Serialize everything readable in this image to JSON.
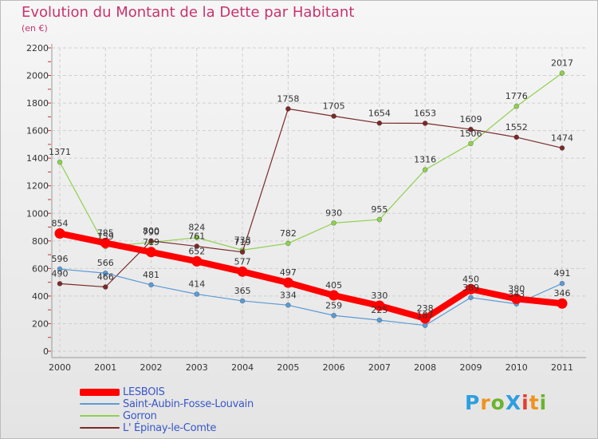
{
  "header": {
    "title": "Evolution du Montant de la Dette par Habitant",
    "subtitle": "(en €)"
  },
  "logo": {
    "text": "ProXiti",
    "letter_colors": [
      "#2e9ee0",
      "#f0921d",
      "#6ab42d",
      "#2e9ee0",
      "#e23d2e",
      "#f0921d",
      "#6ab42d"
    ]
  },
  "chart_data": {
    "type": "line",
    "title": "Evolution du Montant de la Dette par Habitant",
    "subtitle": "(en €)",
    "xlabel": "",
    "ylabel": "",
    "x": [
      "2000",
      "2001",
      "2002",
      "2003",
      "2004",
      "2005",
      "2006",
      "2007",
      "2008",
      "2009",
      "2010",
      "2011"
    ],
    "ylim": [
      0,
      2200
    ],
    "yticks": [
      0,
      200,
      400,
      600,
      800,
      1000,
      1200,
      1400,
      1600,
      1800,
      2000,
      2200
    ],
    "grid": true,
    "legend_position": "bottom-left",
    "series": [
      {
        "name": "LESBOIS",
        "color": "#ff0000",
        "emphasis": "thick",
        "values": [
          854,
          785,
          719,
          652,
          577,
          497,
          405,
          330,
          238,
          450,
          380,
          346
        ],
        "labels": [
          "854",
          "785",
          "719",
          "652",
          "577",
          "497",
          "405",
          "330",
          "238",
          "450",
          "380",
          "346"
        ]
      },
      {
        "name": "Saint-Aubin-Fosse-Louvain",
        "color": "#5b9bd5",
        "values": [
          596,
          566,
          481,
          414,
          365,
          334,
          259,
          225,
          187,
          389,
          343,
          491
        ],
        "labels": [
          "596",
          "566",
          "481",
          "414",
          "365",
          "334",
          "259",
          "225",
          "187",
          "389",
          "343",
          "491"
        ]
      },
      {
        "name": "Gorron",
        "color": "#8fd14f",
        "values": [
          1371,
          759,
          790,
          824,
          733,
          782,
          930,
          955,
          1316,
          1506,
          1776,
          2017
        ],
        "labels": [
          "1371",
          "759",
          "790",
          "824",
          "733",
          "782",
          "930",
          "955",
          "1316",
          "1506",
          "1776",
          "2017"
        ]
      },
      {
        "name": "L' Épinay-le-Comte",
        "color": "#7a2a2a",
        "values": [
          490,
          466,
          800,
          761,
          719,
          1758,
          1705,
          1654,
          1653,
          1609,
          1552,
          1474
        ],
        "labels": [
          "490",
          "466",
          "800",
          "761",
          "719",
          "1758",
          "1705",
          "1654",
          "1653",
          "1609",
          "1552",
          "1474"
        ]
      }
    ]
  }
}
